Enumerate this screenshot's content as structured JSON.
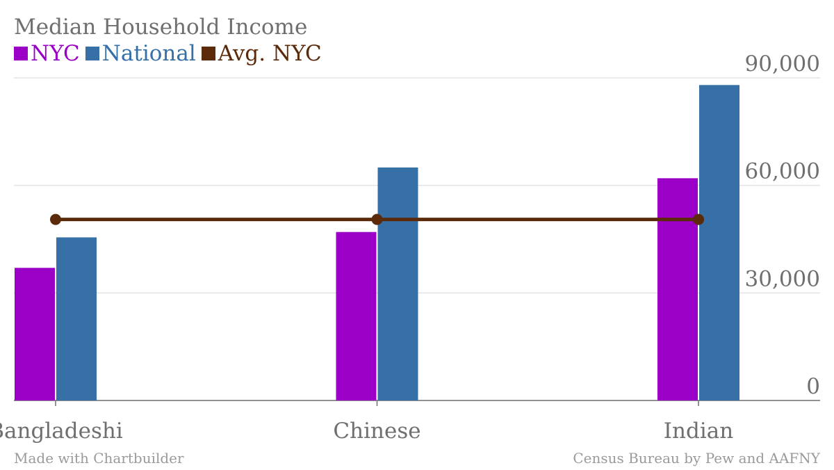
{
  "chart_data": {
    "type": "bar",
    "title": "Median Household Income",
    "categories": [
      "Bangladeshi",
      "Chinese",
      "Indian"
    ],
    "series": [
      {
        "name": "NYC",
        "type": "bar",
        "color": "#9a00c6",
        "values": [
          37000,
          47000,
          62000
        ]
      },
      {
        "name": "National",
        "type": "bar",
        "color": "#3670a6",
        "values": [
          45500,
          65000,
          88000
        ]
      },
      {
        "name": "Avg. NYC",
        "type": "line",
        "color": "#5a2a0a",
        "values": [
          50500,
          50500,
          50500
        ]
      }
    ],
    "ylim": [
      0,
      90000
    ],
    "yticks": [
      0,
      30000,
      60000,
      90000
    ],
    "ytick_labels": [
      "0",
      "30,000",
      "60,000",
      "90,000"
    ],
    "y_axis_position": "right",
    "grid": true,
    "legend_position": "top-left",
    "source_left": "Made with Chartbuilder",
    "source_right": "Census Bureau by Pew and AAFNY"
  }
}
